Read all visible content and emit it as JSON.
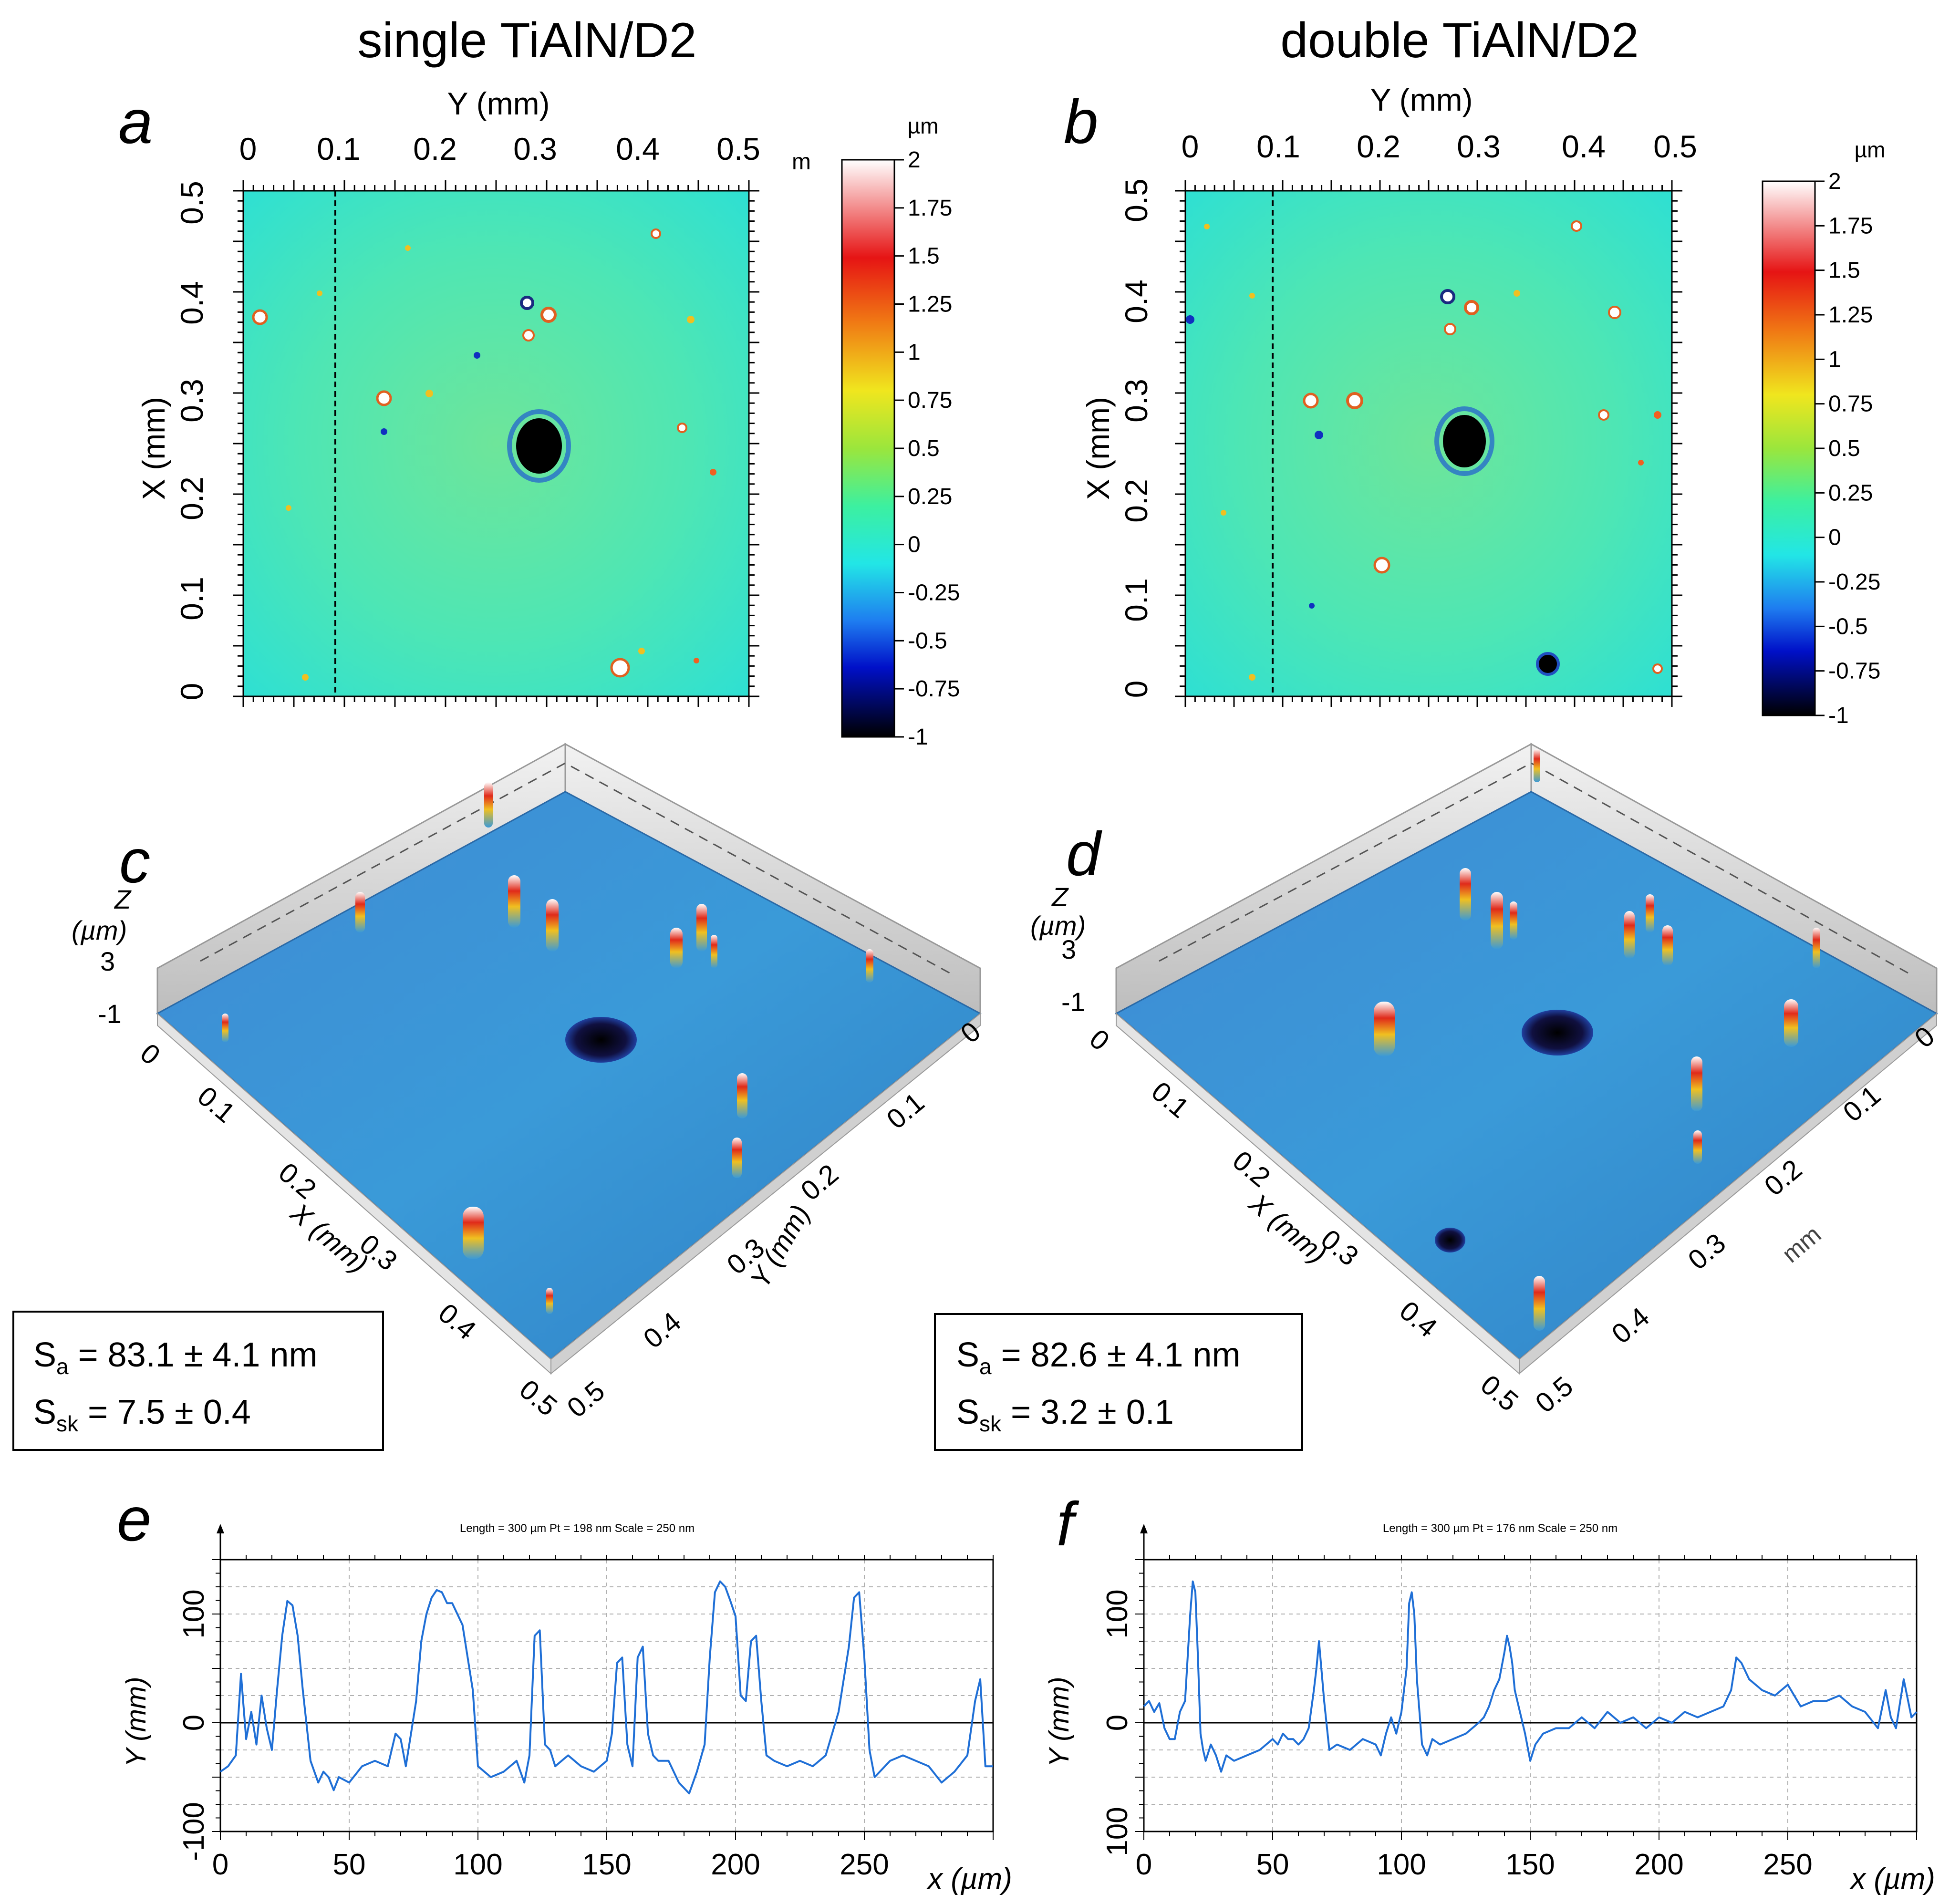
{
  "panels": {
    "a": {
      "letter": "a",
      "column_title": "single TiAlN/D2"
    },
    "b": {
      "letter": "b",
      "column_title": "double TiAlN/D2"
    },
    "c": {
      "letter": "c"
    },
    "d": {
      "letter": "d"
    },
    "e": {
      "letter": "e"
    },
    "f": {
      "letter": "f"
    }
  },
  "map_axes": {
    "y_axis_title": "Y (mm)",
    "x_axis_title": "X (mm)",
    "ticks": [
      "0",
      "0.1",
      "0.2",
      "0.3",
      "0.4",
      "0.5"
    ],
    "stray_unit_a": "m"
  },
  "colorbar": {
    "unit": "µm",
    "ticks": [
      "2",
      "1.75",
      "1.5",
      "1.25",
      "1",
      "0.75",
      "0.5",
      "0.25",
      "0",
      "-0.25",
      "-0.5",
      "-0.75",
      "-1"
    ],
    "colors": [
      "#000000",
      "#0010c8",
      "#1e7cf0",
      "#22e6e6",
      "#3cf0a0",
      "#9be63c",
      "#f0e61e",
      "#f07814",
      "#e61414",
      "#ffffff"
    ]
  },
  "surface3d": {
    "c": {
      "z_label": [
        "Z",
        "(µm)",
        "3"
      ],
      "z_min": "-1",
      "x_ticks": [
        "0",
        "0.1",
        "0.2",
        "0.3",
        "0.4",
        "0.5"
      ],
      "y_ticks": [
        "0",
        "0.1",
        "0.2",
        "0.3",
        "0.4",
        "0.5"
      ],
      "x_title": "X (mm)",
      "y_title": "Y (mm)"
    },
    "d": {
      "z_label": [
        "Z",
        "(µm)",
        "3"
      ],
      "z_min": "-1",
      "x_ticks": [
        "0",
        "0.1",
        "0.2",
        "0.3",
        "0.4",
        "0.5"
      ],
      "y_ticks": [
        "0",
        "0.1",
        "0.2",
        "0.3",
        "0.4",
        "0.5"
      ],
      "x_title": "X (mm)",
      "y_unit": "mm"
    }
  },
  "stats": {
    "c": {
      "sa_sub": "a",
      "sa_val": " = 83.1 ± 4.1 nm",
      "ssk_sub": "sk",
      "ssk_val": " = 7.5 ± 0.4"
    },
    "d": {
      "sa_sub": "a",
      "sa_val": " = 82.6 ± 4.1 nm",
      "ssk_sub": "sk",
      "ssk_val": " = 3.2 ± 0.1"
    }
  },
  "chart_data": [
    {
      "panel": "e",
      "type": "line",
      "title": "Length = 300 µm  Pt = 198 nm  Scale = 250 nm",
      "xlabel": "x (µm)",
      "ylabel": "Y (mm)",
      "xlim": [
        0,
        300
      ],
      "ylim": [
        -100,
        150
      ],
      "x_ticks": [
        "0",
        "50",
        "100",
        "150",
        "200",
        "250"
      ],
      "y_ticks": [
        "100",
        "0",
        "-100"
      ],
      "x": [
        0,
        3,
        6,
        8,
        10,
        12,
        14,
        16,
        18,
        20,
        22,
        24,
        26,
        28,
        30,
        32,
        35,
        38,
        40,
        42,
        44,
        46,
        50,
        55,
        60,
        65,
        68,
        70,
        72,
        74,
        76,
        78,
        80,
        82,
        84,
        86,
        88,
        90,
        92,
        94,
        96,
        98,
        100,
        105,
        110,
        115,
        118,
        120,
        122,
        124,
        126,
        128,
        130,
        135,
        140,
        145,
        150,
        152,
        154,
        156,
        158,
        160,
        162,
        164,
        166,
        168,
        170,
        172,
        174,
        176,
        178,
        180,
        182,
        185,
        188,
        190,
        192,
        194,
        196,
        198,
        200,
        202,
        204,
        206,
        208,
        210,
        212,
        215,
        220,
        225,
        230,
        235,
        240,
        244,
        246,
        248,
        250,
        252,
        254,
        256,
        258,
        260,
        265,
        270,
        275,
        280,
        285,
        290,
        293,
        295,
        297,
        300
      ],
      "values": [
        -45,
        -40,
        -30,
        45,
        -15,
        10,
        -20,
        25,
        -5,
        -25,
        30,
        80,
        112,
        108,
        80,
        30,
        -35,
        -55,
        -45,
        -50,
        -62,
        -50,
        -55,
        -40,
        -35,
        -40,
        -10,
        -15,
        -40,
        -10,
        20,
        75,
        100,
        115,
        122,
        120,
        110,
        110,
        100,
        90,
        60,
        30,
        -40,
        -50,
        -45,
        -35,
        -55,
        -30,
        80,
        85,
        -20,
        -25,
        -40,
        -30,
        -40,
        -45,
        -35,
        -10,
        55,
        60,
        -20,
        -40,
        60,
        70,
        -10,
        -30,
        -35,
        -35,
        -35,
        -45,
        -55,
        -60,
        -65,
        -45,
        -20,
        60,
        120,
        130,
        125,
        112,
        98,
        25,
        20,
        75,
        80,
        20,
        -30,
        -35,
        -40,
        -35,
        -40,
        -30,
        10,
        70,
        115,
        120,
        60,
        -25,
        -50,
        -45,
        -40,
        -35,
        -30,
        -35,
        -40,
        -55,
        -45,
        -30,
        20,
        40,
        -40,
        -40
      ]
    },
    {
      "panel": "f",
      "type": "line",
      "title": "Length = 300 µm  Pt = 176 nm  Scale = 250 nm",
      "xlabel": "x (µm)",
      "ylabel": "Y (mm)",
      "xlim": [
        0,
        300
      ],
      "ylim": [
        -100,
        150
      ],
      "x_ticks": [
        "0",
        "50",
        "100",
        "150",
        "200",
        "250"
      ],
      "y_ticks": [
        "100",
        "0",
        "100"
      ],
      "x": [
        0,
        2,
        4,
        6,
        8,
        10,
        12,
        14,
        16,
        17,
        18,
        19,
        20,
        21,
        22,
        23,
        24,
        26,
        28,
        30,
        32,
        35,
        40,
        45,
        50,
        52,
        54,
        56,
        58,
        60,
        62,
        64,
        66,
        67,
        68,
        70,
        72,
        75,
        80,
        85,
        90,
        92,
        94,
        96,
        98,
        100,
        102,
        103,
        104,
        105,
        106,
        108,
        110,
        112,
        115,
        120,
        125,
        130,
        132,
        134,
        136,
        138,
        140,
        141,
        142,
        143,
        144,
        146,
        148,
        150,
        152,
        155,
        160,
        165,
        170,
        175,
        180,
        185,
        190,
        195,
        200,
        205,
        210,
        215,
        220,
        225,
        228,
        230,
        232,
        235,
        240,
        245,
        250,
        255,
        260,
        265,
        270,
        275,
        280,
        285,
        288,
        290,
        292,
        295,
        298,
        300
      ],
      "values": [
        15,
        20,
        10,
        18,
        -5,
        -15,
        -15,
        10,
        20,
        60,
        100,
        130,
        120,
        60,
        -10,
        -25,
        -35,
        -20,
        -30,
        -45,
        -30,
        -35,
        -30,
        -25,
        -15,
        -20,
        -10,
        -15,
        -15,
        -20,
        -15,
        -5,
        30,
        50,
        75,
        20,
        -25,
        -20,
        -25,
        -15,
        -20,
        -30,
        -10,
        5,
        -10,
        10,
        50,
        110,
        120,
        100,
        40,
        -20,
        -30,
        -15,
        -20,
        -15,
        -10,
        0,
        5,
        15,
        30,
        40,
        65,
        80,
        70,
        55,
        30,
        10,
        -10,
        -35,
        -20,
        -10,
        -5,
        -5,
        5,
        -5,
        10,
        0,
        5,
        -5,
        5,
        0,
        10,
        5,
        10,
        15,
        30,
        60,
        55,
        40,
        30,
        25,
        35,
        15,
        20,
        20,
        25,
        15,
        10,
        -5,
        30,
        5,
        -5,
        40,
        5,
        10
      ]
    }
  ]
}
